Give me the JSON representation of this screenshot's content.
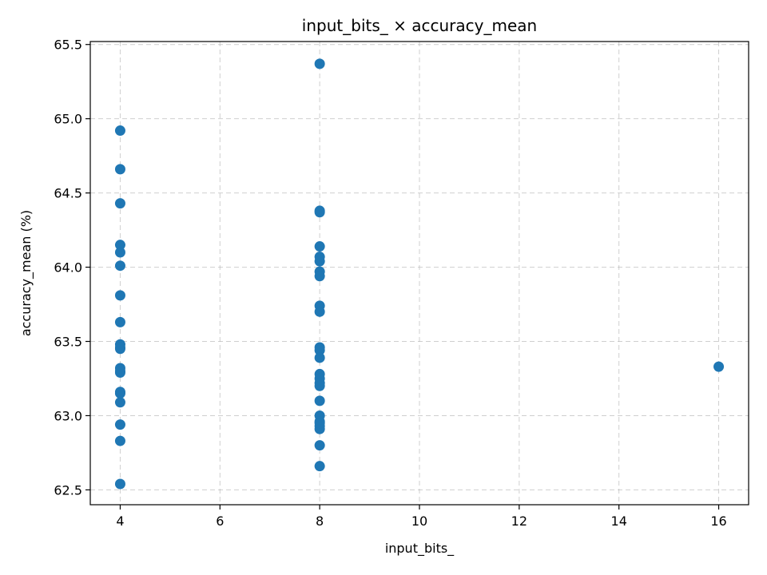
{
  "chart_data": {
    "type": "scatter",
    "title": "input_bits_ × accuracy_mean",
    "xlabel": "input_bits_",
    "ylabel": "accuracy_mean (%)",
    "xlim": [
      3.4,
      16.6
    ],
    "ylim": [
      62.4,
      65.52
    ],
    "xticks": [
      4,
      6,
      8,
      10,
      12,
      14,
      16
    ],
    "xtick_labels": [
      "4",
      "6",
      "8",
      "10",
      "12",
      "14",
      "16"
    ],
    "yticks": [
      62.5,
      63.0,
      63.5,
      64.0,
      64.5,
      65.0,
      65.5
    ],
    "ytick_labels": [
      "62.5",
      "63.0",
      "63.5",
      "64.0",
      "64.5",
      "65.0",
      "65.5"
    ],
    "grid": true,
    "marker_color": "#1f77b4",
    "series": [
      {
        "x": [
          4,
          4,
          4,
          4,
          4,
          4,
          4,
          4,
          4,
          4,
          4,
          4,
          4,
          4,
          4,
          4,
          4,
          4,
          4,
          4,
          8,
          8,
          8,
          8,
          8,
          8,
          8,
          8,
          8,
          8,
          8,
          8,
          8,
          8,
          8,
          8,
          8,
          8,
          8,
          8,
          8,
          8,
          8,
          8,
          8,
          16
        ],
        "y": [
          64.92,
          64.66,
          64.43,
          64.15,
          64.1,
          64.01,
          63.81,
          63.63,
          63.48,
          63.45,
          63.32,
          63.29,
          63.16,
          63.09,
          62.94,
          62.83,
          62.54,
          63.3,
          63.46,
          63.15,
          65.37,
          64.38,
          64.37,
          64.14,
          64.07,
          64.04,
          63.97,
          63.94,
          63.74,
          63.7,
          63.46,
          63.44,
          63.39,
          63.28,
          63.25,
          63.22,
          63.1,
          63.0,
          62.96,
          62.93,
          62.91,
          62.8,
          62.66,
          63.2,
          62.95,
          63.33
        ]
      }
    ]
  }
}
